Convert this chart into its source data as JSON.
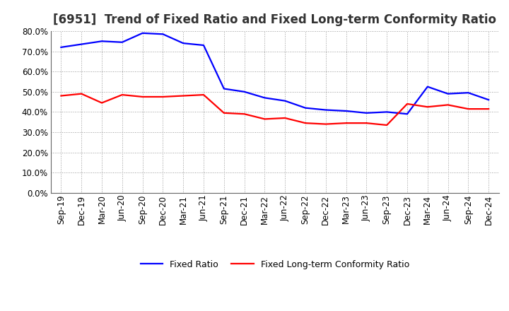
{
  "title": "[6951]  Trend of Fixed Ratio and Fixed Long-term Conformity Ratio",
  "x_labels": [
    "Sep-19",
    "Dec-19",
    "Mar-20",
    "Jun-20",
    "Sep-20",
    "Dec-20",
    "Mar-21",
    "Jun-21",
    "Sep-21",
    "Dec-21",
    "Mar-22",
    "Jun-22",
    "Sep-22",
    "Dec-22",
    "Mar-23",
    "Jun-23",
    "Sep-23",
    "Dec-23",
    "Mar-24",
    "Jun-24",
    "Sep-24",
    "Dec-24"
  ],
  "fixed_ratio": [
    72.0,
    73.5,
    75.0,
    74.5,
    79.0,
    78.5,
    74.0,
    73.0,
    51.5,
    50.0,
    47.0,
    45.5,
    42.0,
    41.0,
    40.5,
    39.5,
    40.0,
    39.0,
    52.5,
    49.0,
    49.5,
    46.0
  ],
  "fixed_lt_ratio": [
    48.0,
    49.0,
    44.5,
    48.5,
    47.5,
    47.5,
    48.0,
    48.5,
    39.5,
    39.0,
    36.5,
    37.0,
    34.5,
    34.0,
    34.5,
    34.5,
    33.5,
    44.0,
    42.5,
    43.5,
    41.5,
    41.5
  ],
  "fixed_ratio_color": "#0000FF",
  "fixed_lt_ratio_color": "#FF0000",
  "ylim": [
    0,
    80
  ],
  "yticks": [
    0,
    10,
    20,
    30,
    40,
    50,
    60,
    70,
    80
  ],
  "background_color": "#FFFFFF",
  "plot_bg_color": "#FFFFFF",
  "grid_color": "#999999",
  "title_color": "#333333",
  "title_fontsize": 12,
  "tick_fontsize": 8.5,
  "legend_fontsize": 9
}
